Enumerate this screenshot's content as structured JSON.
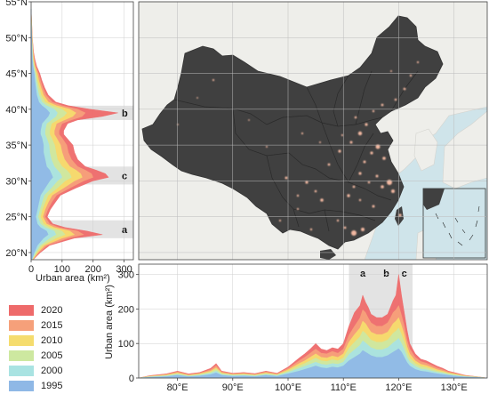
{
  "map": {
    "lat_ticks": [
      "55°N",
      "50°N",
      "45°N",
      "40°N",
      "35°N",
      "30°N",
      "25°N",
      "20°N"
    ],
    "lon_ticks": [
      "80°E",
      "90°E",
      "100°E",
      "110°E",
      "120°E",
      "130°E"
    ],
    "land_color": "#404040",
    "ocean_color": "#cfe4ea",
    "neighbor_color": "#eeeeea",
    "urban_glow_color": "#f2b8a0"
  },
  "left_profile": {
    "axis_title": "Urban area (km²)",
    "x_ticks": [
      "0",
      "100",
      "200",
      "300"
    ],
    "bands": [
      {
        "label": "b",
        "lat_range": [
          38.5,
          40.5
        ]
      },
      {
        "label": "c",
        "lat_range": [
          29.5,
          32
        ]
      },
      {
        "label": "a",
        "lat_range": [
          22,
          24.5
        ]
      }
    ]
  },
  "bottom_profile": {
    "axis_title": "Urban area (km²)",
    "y_ticks": [
      "0",
      "100",
      "200",
      "300"
    ],
    "bands": [
      {
        "label": "a",
        "lon_range": [
          111,
          116
        ]
      },
      {
        "label": "b",
        "lon_range": [
          116,
          119.5
        ]
      },
      {
        "label": "c",
        "lon_range": [
          119.5,
          122.5
        ]
      }
    ]
  },
  "legend": {
    "items": [
      {
        "label": "2020",
        "color": "#ee6a6a"
      },
      {
        "label": "2015",
        "color": "#f6a07a"
      },
      {
        "label": "2010",
        "color": "#f5dc6e"
      },
      {
        "label": "2005",
        "color": "#cde8a0"
      },
      {
        "label": "2000",
        "color": "#a9e3e2"
      },
      {
        "label": "1995",
        "color": "#8fb8e6"
      }
    ]
  },
  "chart_data": [
    {
      "type": "area",
      "orientation": "horizontal",
      "xlabel": "Urban area (km²)",
      "xlim": [
        0,
        330
      ],
      "ylim": [
        19,
        55
      ],
      "y_axis": "latitude (°N)",
      "series_order_bottom_to_top": [
        "1995",
        "2000",
        "2005",
        "2010",
        "2015",
        "2020"
      ],
      "x": [
        19,
        20,
        21,
        22,
        22.5,
        23,
        23.5,
        24,
        25,
        26,
        27,
        28,
        29,
        30,
        30.5,
        31,
        31.5,
        32,
        33,
        34,
        35,
        36,
        36.5,
        37,
        38,
        38.5,
        39,
        39.5,
        40,
        40.5,
        41,
        42,
        43,
        44,
        45,
        46,
        47,
        48,
        50,
        52,
        54
      ],
      "series": [
        {
          "name": "1995",
          "values": [
            2,
            10,
            20,
            40,
            55,
            50,
            30,
            20,
            15,
            20,
            25,
            30,
            45,
            60,
            70,
            65,
            60,
            50,
            45,
            40,
            40,
            35,
            30,
            30,
            35,
            45,
            55,
            60,
            50,
            35,
            25,
            18,
            15,
            12,
            10,
            6,
            4,
            3,
            2,
            1,
            0
          ]
        },
        {
          "name": "2000",
          "values": [
            3,
            14,
            28,
            60,
            80,
            75,
            45,
            30,
            22,
            28,
            35,
            42,
            65,
            85,
            100,
            95,
            85,
            75,
            65,
            60,
            58,
            50,
            45,
            45,
            50,
            65,
            80,
            85,
            75,
            50,
            35,
            25,
            20,
            16,
            13,
            8,
            5,
            4,
            2,
            1,
            0
          ]
        },
        {
          "name": "2005",
          "values": [
            4,
            18,
            36,
            80,
            110,
            100,
            60,
            40,
            30,
            36,
            45,
            55,
            85,
            110,
            130,
            125,
            115,
            100,
            85,
            80,
            76,
            66,
            60,
            60,
            66,
            85,
            105,
            115,
            100,
            66,
            45,
            32,
            26,
            20,
            16,
            10,
            6,
            5,
            3,
            1,
            0
          ]
        },
        {
          "name": "2010",
          "values": [
            5,
            22,
            44,
            100,
            140,
            125,
            75,
            50,
            38,
            45,
            55,
            68,
            105,
            140,
            165,
            160,
            145,
            125,
            108,
            100,
            95,
            82,
            75,
            75,
            82,
            108,
            135,
            145,
            125,
            82,
            56,
            40,
            32,
            25,
            20,
            12,
            8,
            6,
            3,
            2,
            0
          ]
        },
        {
          "name": "2015",
          "values": [
            6,
            26,
            52,
            120,
            170,
            150,
            90,
            60,
            45,
            54,
            66,
            82,
            125,
            170,
            200,
            195,
            175,
            150,
            130,
            120,
            115,
            100,
            90,
            90,
            100,
            130,
            165,
            175,
            150,
            100,
            68,
            48,
            38,
            30,
            24,
            15,
            10,
            7,
            4,
            2,
            0
          ]
        },
        {
          "name": "2020",
          "values": [
            7,
            30,
            60,
            140,
            230,
            180,
            110,
            70,
            52,
            62,
            78,
            95,
            145,
            200,
            250,
            240,
            210,
            175,
            150,
            140,
            135,
            115,
            105,
            105,
            118,
            150,
            230,
            280,
            190,
            120,
            80,
            55,
            44,
            35,
            28,
            18,
            12,
            8,
            4,
            2,
            0
          ]
        }
      ]
    },
    {
      "type": "area",
      "orientation": "vertical",
      "ylabel": "Urban area (km²)",
      "ylim": [
        0,
        330
      ],
      "xlim": [
        73,
        136
      ],
      "x_axis": "longitude (°E)",
      "series_order_bottom_to_top": [
        "1995",
        "2000",
        "2005",
        "2010",
        "2015",
        "2020"
      ],
      "x": [
        73,
        75,
        78,
        80,
        82,
        84,
        86,
        87,
        88,
        90,
        92,
        94,
        96,
        98,
        100,
        102,
        103,
        104,
        105,
        106,
        107,
        108,
        109,
        110,
        111,
        112,
        113,
        113.5,
        114,
        114.5,
        115,
        116,
        117,
        118,
        118.5,
        119,
        119.5,
        120,
        120.5,
        121,
        121.5,
        122,
        123,
        124,
        125,
        126,
        127,
        128,
        129,
        130,
        132,
        134,
        136
      ],
      "series": [
        {
          "name": "1995",
          "values": [
            0,
            2,
            4,
            8,
            4,
            6,
            10,
            15,
            8,
            5,
            6,
            4,
            8,
            5,
            12,
            20,
            25,
            30,
            35,
            30,
            28,
            32,
            30,
            35,
            50,
            60,
            70,
            80,
            75,
            70,
            65,
            60,
            60,
            65,
            70,
            75,
            80,
            85,
            75,
            60,
            45,
            35,
            25,
            20,
            18,
            15,
            12,
            10,
            8,
            6,
            3,
            2,
            0
          ]
        },
        {
          "name": "2000",
          "values": [
            0,
            3,
            6,
            10,
            5,
            8,
            14,
            20,
            10,
            7,
            8,
            6,
            10,
            7,
            16,
            28,
            34,
            40,
            46,
            40,
            38,
            42,
            40,
            46,
            68,
            82,
            95,
            108,
            102,
            95,
            88,
            82,
            82,
            88,
            95,
            102,
            108,
            115,
            100,
            82,
            60,
            46,
            34,
            26,
            24,
            20,
            16,
            14,
            10,
            8,
            4,
            2,
            0
          ]
        },
        {
          "name": "2005",
          "values": [
            0,
            4,
            7,
            13,
            7,
            10,
            17,
            26,
            13,
            9,
            10,
            8,
            13,
            9,
            20,
            35,
            42,
            50,
            58,
            50,
            48,
            53,
            50,
            58,
            86,
            104,
            120,
            136,
            130,
            120,
            110,
            104,
            104,
            110,
            120,
            130,
            136,
            145,
            126,
            104,
            76,
            58,
            42,
            33,
            30,
            25,
            20,
            17,
            13,
            10,
            5,
            3,
            0
          ]
        },
        {
          "name": "2010",
          "values": [
            0,
            5,
            9,
            15,
            8,
            12,
            20,
            30,
            15,
            10,
            12,
            9,
            15,
            10,
            24,
            42,
            50,
            60,
            70,
            60,
            58,
            64,
            60,
            70,
            104,
            126,
            145,
            165,
            158,
            145,
            133,
            126,
            126,
            133,
            145,
            158,
            165,
            175,
            152,
            126,
            92,
            70,
            50,
            40,
            36,
            30,
            24,
            20,
            15,
            12,
            6,
            3,
            0
          ]
        },
        {
          "name": "2015",
          "values": [
            0,
            6,
            10,
            18,
            10,
            14,
            24,
            36,
            18,
            12,
            14,
            11,
            18,
            12,
            28,
            50,
            60,
            72,
            84,
            72,
            70,
            77,
            72,
            84,
            124,
            150,
            174,
            198,
            190,
            174,
            160,
            150,
            150,
            160,
            174,
            190,
            198,
            210,
            182,
            150,
            110,
            84,
            60,
            48,
            43,
            36,
            29,
            24,
            18,
            14,
            7,
            4,
            0
          ]
        },
        {
          "name": "2020",
          "values": [
            0,
            7,
            12,
            20,
            12,
            16,
            28,
            42,
            20,
            14,
            16,
            13,
            20,
            14,
            32,
            58,
            70,
            84,
            100,
            84,
            80,
            88,
            84,
            100,
            150,
            190,
            210,
            240,
            220,
            205,
            185,
            175,
            175,
            185,
            205,
            225,
            240,
            300,
            240,
            190,
            140,
            100,
            70,
            55,
            50,
            42,
            34,
            28,
            20,
            16,
            8,
            4,
            0
          ]
        }
      ]
    }
  ]
}
